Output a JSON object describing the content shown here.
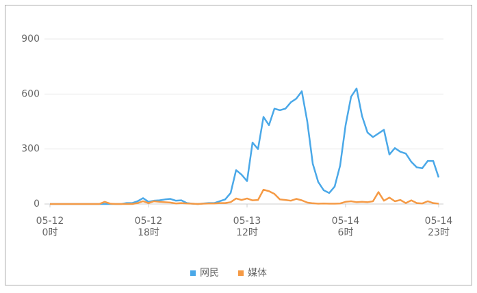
{
  "chart_data": {
    "type": "line",
    "categories": [
      "05-12\n0时",
      null,
      null,
      null,
      null,
      null,
      null,
      null,
      null,
      null,
      null,
      null,
      null,
      null,
      null,
      null,
      null,
      null,
      "05-12\n18时",
      null,
      null,
      null,
      null,
      null,
      null,
      null,
      null,
      null,
      null,
      null,
      null,
      null,
      null,
      null,
      null,
      null,
      "05-13\n12时",
      null,
      null,
      null,
      null,
      null,
      null,
      null,
      null,
      null,
      null,
      null,
      null,
      null,
      null,
      null,
      null,
      null,
      "05-14\n6时",
      null,
      null,
      null,
      null,
      null,
      null,
      null,
      null,
      null,
      null,
      null,
      null,
      null,
      null,
      null,
      null,
      "05-14\n23时"
    ],
    "series": [
      {
        "name": "网民",
        "color": "#4aa8e8",
        "values": [
          0,
          0,
          0,
          0,
          0,
          0,
          0,
          0,
          0,
          0,
          0,
          0,
          0,
          0,
          5,
          5,
          15,
          32,
          12,
          18,
          20,
          25,
          28,
          18,
          20,
          5,
          2,
          0,
          3,
          5,
          5,
          15,
          25,
          60,
          185,
          160,
          125,
          335,
          300,
          475,
          430,
          520,
          512,
          520,
          555,
          575,
          615,
          450,
          220,
          120,
          75,
          60,
          95,
          210,
          430,
          585,
          630,
          480,
          390,
          365,
          385,
          405,
          270,
          305,
          285,
          275,
          230,
          200,
          195,
          235,
          235,
          145
        ]
      },
      {
        "name": "媒体",
        "color": "#f59a45",
        "values": [
          0,
          0,
          0,
          0,
          0,
          0,
          0,
          0,
          0,
          0,
          12,
          2,
          0,
          0,
          0,
          0,
          5,
          15,
          5,
          15,
          12,
          10,
          8,
          3,
          5,
          3,
          2,
          0,
          2,
          3,
          3,
          5,
          5,
          10,
          30,
          22,
          30,
          20,
          22,
          78,
          70,
          55,
          25,
          22,
          18,
          28,
          20,
          8,
          4,
          2,
          3,
          2,
          2,
          3,
          12,
          15,
          10,
          12,
          10,
          15,
          65,
          18,
          35,
          15,
          22,
          5,
          20,
          5,
          3,
          15,
          5,
          2
        ]
      }
    ],
    "ylim": [
      0,
      900
    ],
    "yticks": [
      0,
      300,
      600,
      900
    ],
    "grid": true,
    "legend": "bottom"
  }
}
